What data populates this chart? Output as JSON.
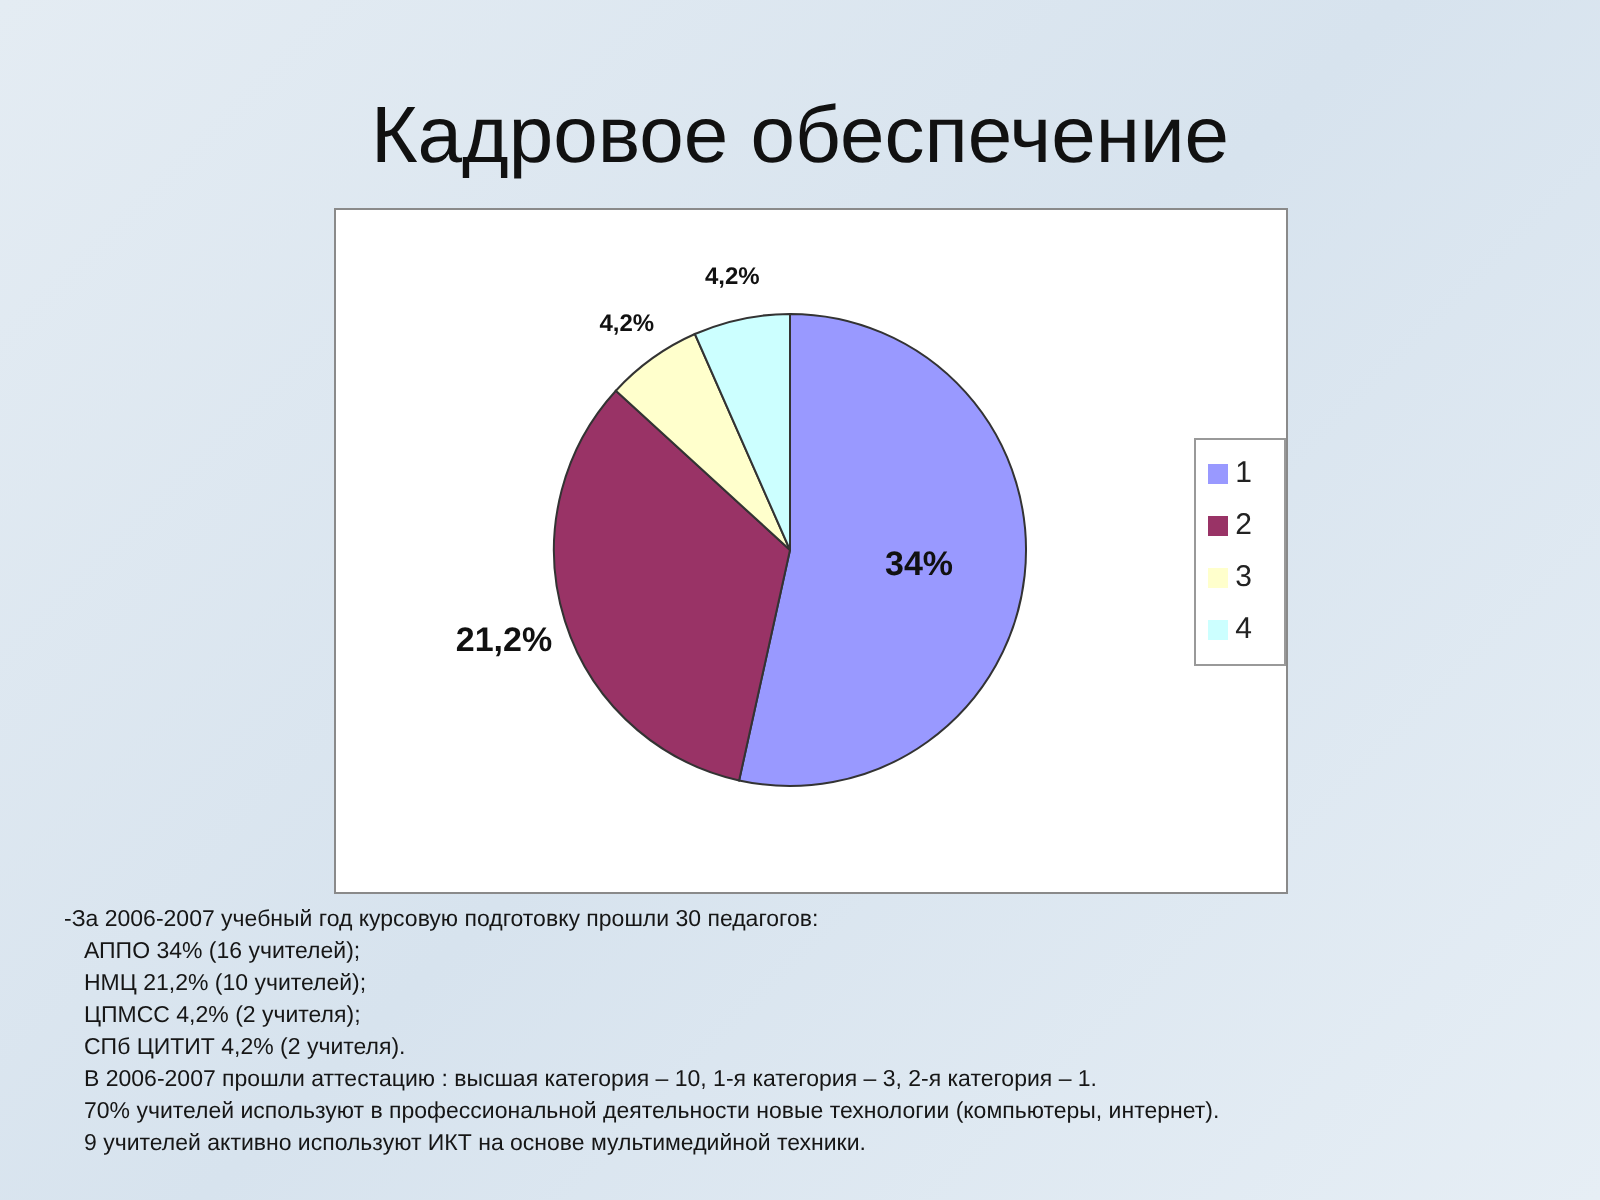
{
  "chart_data": {
    "type": "pie",
    "title": "Кадровое обеспечение",
    "categories": [
      "1",
      "2",
      "3",
      "4"
    ],
    "values": [
      34,
      21.2,
      4.2,
      4.2
    ],
    "colors": [
      "#9999ff",
      "#993366",
      "#ffffcc",
      "#ccffff"
    ],
    "value_labels": [
      "34%",
      "21,2%",
      "4,2%",
      "4,2%"
    ],
    "legend": "right",
    "annotations": [
      "-За 2006-2007 учебный год курсовую подготовку прошли 30 педагогов:",
      "АППО 34% (16 учителей);",
      "НМЦ 21,2% (10 учителей);",
      "ЦПМСС 4,2% (2 учителя);",
      "СПб ЦИТИТ 4,2% (2 учителя).",
      "В 2006-2007 прошли аттестацию : высшая категория – 10, 1-я категория – 3, 2-я категория – 1.",
      "70% учителей используют  в профессиональной деятельности новые технологии (компьютеры, интернет).",
      "9 учителей активно используют ИКТ на основе мультимедийной техники."
    ]
  }
}
